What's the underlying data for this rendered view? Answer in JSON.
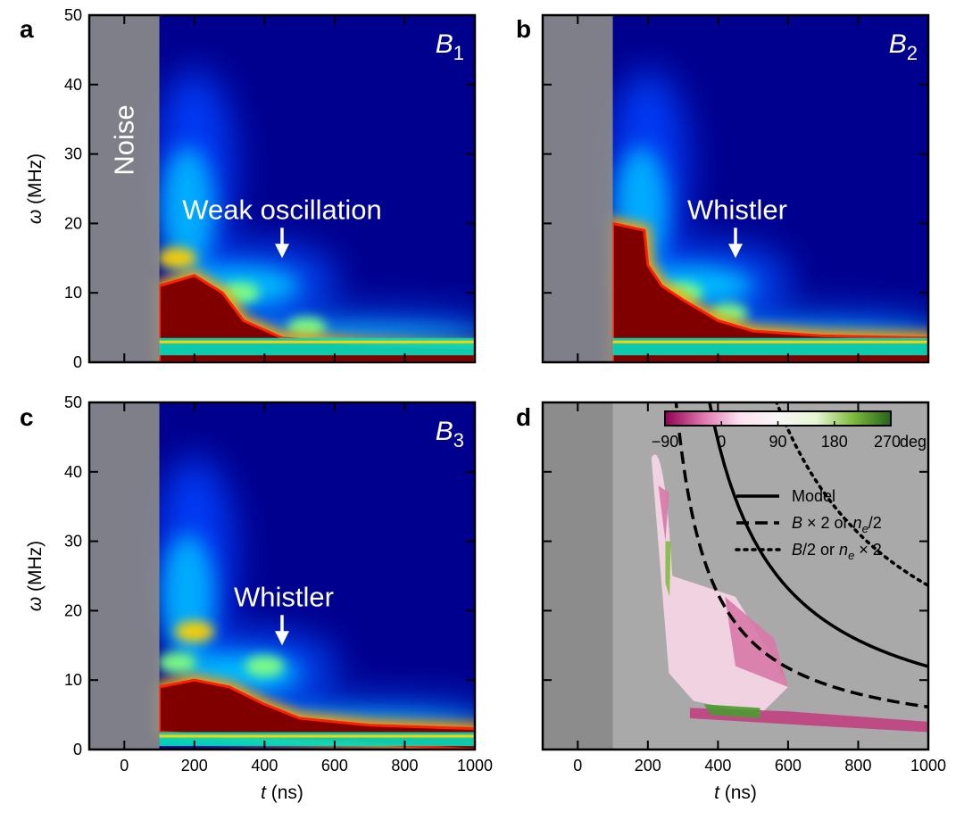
{
  "chart_data": [
    {
      "panel": "a",
      "type": "heatmap",
      "var_label": "B",
      "var_sub": "1",
      "xlabel_var": "t",
      "xlabel_unit": " (ns)",
      "ylabel_var": "ω",
      "ylabel_unit": " (MHz)",
      "xlim": [
        -100,
        1000
      ],
      "ylim": [
        0,
        50
      ],
      "xticks": [
        0,
        200,
        400,
        600,
        800,
        1000
      ],
      "yticks": [
        0,
        10,
        20,
        30,
        40,
        50
      ],
      "noise_region": [
        -100,
        100
      ],
      "noise_label": "Noise",
      "annotation": {
        "text": "Weak oscillation",
        "x": 450,
        "y": 15
      },
      "features": {
        "band_low": [
          1,
          3.5
        ],
        "red_blob": [
          [
            100,
            0
          ],
          [
            100,
            11
          ],
          [
            200,
            12.5
          ],
          [
            280,
            10
          ],
          [
            340,
            6
          ],
          [
            450,
            3.5
          ],
          [
            700,
            2.5
          ],
          [
            1000,
            2
          ]
        ],
        "bright_spots": [
          [
            150,
            15
          ],
          [
            330,
            10
          ],
          [
            520,
            5
          ]
        ]
      }
    },
    {
      "panel": "b",
      "type": "heatmap",
      "var_label": "B",
      "var_sub": "2",
      "xlabel_var": "t",
      "xlabel_unit": " (ns)",
      "xlim": [
        -100,
        1000
      ],
      "ylim": [
        0,
        50
      ],
      "xticks": [
        0,
        200,
        400,
        600,
        800,
        1000
      ],
      "yticks": [
        0,
        10,
        20,
        30,
        40,
        50
      ],
      "noise_region": [
        -100,
        100
      ],
      "annotation": {
        "text": "Whistler",
        "x": 450,
        "y": 15
      },
      "features": {
        "band_low": [
          1,
          3.5
        ],
        "red_blob": [
          [
            100,
            0
          ],
          [
            100,
            20
          ],
          [
            190,
            19
          ],
          [
            200,
            14
          ],
          [
            240,
            11
          ],
          [
            300,
            9
          ],
          [
            400,
            6
          ],
          [
            500,
            4.5
          ],
          [
            700,
            3.8
          ],
          [
            1000,
            3.5
          ]
        ],
        "bright_spots": [
          [
            150,
            12
          ],
          [
            300,
            10
          ],
          [
            430,
            7
          ]
        ]
      }
    },
    {
      "panel": "c",
      "type": "heatmap",
      "var_label": "B",
      "var_sub": "3",
      "xlabel_var": "t",
      "xlabel_unit": " (ns)",
      "ylabel_var": "ω",
      "ylabel_unit": " (MHz)",
      "xlim": [
        -100,
        1000
      ],
      "ylim": [
        0,
        50
      ],
      "xticks": [
        0,
        200,
        400,
        600,
        800,
        1000
      ],
      "yticks": [
        0,
        10,
        20,
        30,
        40,
        50
      ],
      "noise_region": [
        -100,
        100
      ],
      "annotation": {
        "text": "Whistler",
        "x": 450,
        "y": 15
      },
      "features": {
        "band_low": [
          0.5,
          2.5
        ],
        "red_blob": [
          [
            100,
            2.5
          ],
          [
            100,
            9
          ],
          [
            200,
            10
          ],
          [
            300,
            9
          ],
          [
            400,
            6.5
          ],
          [
            500,
            4.5
          ],
          [
            700,
            3.5
          ],
          [
            1000,
            3
          ]
        ],
        "bright_spots": [
          [
            200,
            17
          ],
          [
            150,
            12.5
          ],
          [
            400,
            12
          ]
        ]
      }
    },
    {
      "panel": "d",
      "type": "heatmap",
      "xlabel_var": "t",
      "xlabel_unit": " (ns)",
      "xlim": [
        -100,
        1000
      ],
      "ylim": [
        0,
        50
      ],
      "xticks": [
        0,
        200,
        400,
        600,
        800,
        1000
      ],
      "yticks": [
        0,
        10,
        20,
        30,
        40,
        50
      ],
      "noise_region": [
        -100,
        100
      ],
      "colorbar": {
        "ticks": [
          "−90",
          "0",
          "90",
          "180",
          "270"
        ],
        "unit": "deg",
        "range": [
          -90,
          270
        ],
        "colors": [
          "#8e0152",
          "#de77ae",
          "#fde0ef",
          "#f7f7f7",
          "#e6f5d0",
          "#7fbc41",
          "#276419"
        ]
      },
      "legend": [
        {
          "style": "solid",
          "text": "Model"
        },
        {
          "style": "dashed",
          "prefix": "B",
          "middle": " × 2 or ",
          "var": "n",
          "sub": "e",
          "suffix": "/2"
        },
        {
          "style": "dotted",
          "prefix": "B",
          "middle": "/2 or ",
          "var": "n",
          "sub": "e",
          "suffix": " × 2"
        }
      ],
      "curves": [
        {
          "style": "solid",
          "A": 9500,
          "t0": 185,
          "c": 0.3
        },
        {
          "style": "dashed",
          "A": 4750,
          "t0": 185,
          "c": 0.3
        },
        {
          "style": "dotted",
          "A": 19000,
          "t0": 185,
          "c": 0.3
        }
      ]
    }
  ]
}
